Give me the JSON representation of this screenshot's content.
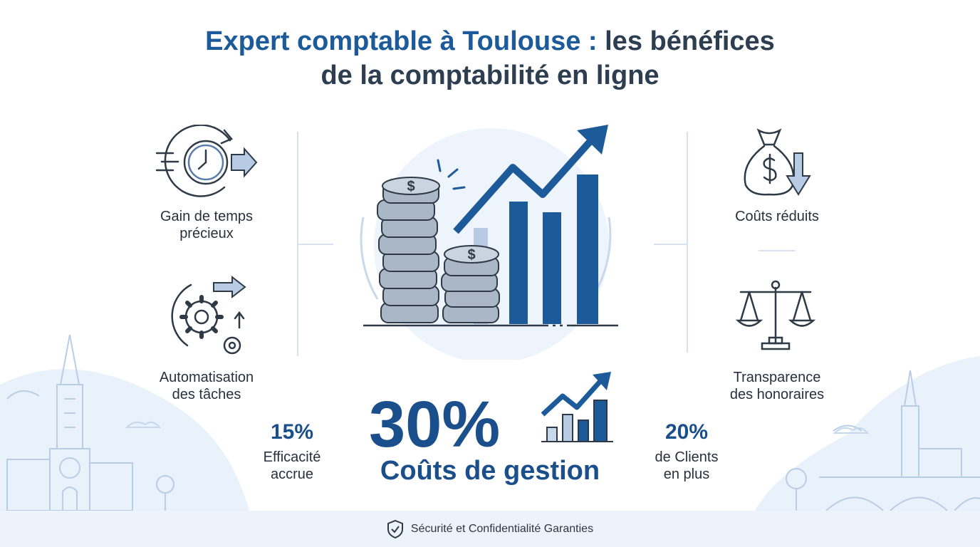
{
  "title": {
    "line1_part1": "Expert comptable à Toulouse : ",
    "line1_part2": "les bénéfices",
    "line2": "de la comptabilité en ligne"
  },
  "features": {
    "time_saving": "Gain de temps\nprécieux",
    "automation": "Automatisation\ndes tâches",
    "reduced_costs": "Coûts réduits",
    "fee_transparency": "Transparence\ndes honoraires"
  },
  "stats": {
    "efficiency_value": "15%",
    "efficiency_label": "Efficacité\naccrue",
    "clients_value": "20%",
    "clients_label": "de Clients\nen plus",
    "costs_value": "30%",
    "costs_label": "Coûts de gestion"
  },
  "footer": {
    "text": "Sécurité et Confidentialité Garanties"
  },
  "icons": [
    "clock-icon",
    "gears-icon",
    "money-bag-icon",
    "scales-icon",
    "shield-check-icon",
    "growth-chart-icon",
    "coins-icon"
  ],
  "colors": {
    "primary_blue": "#1a4f8b",
    "light_blue": "#dbe8f6",
    "dark_text": "#27313d"
  }
}
